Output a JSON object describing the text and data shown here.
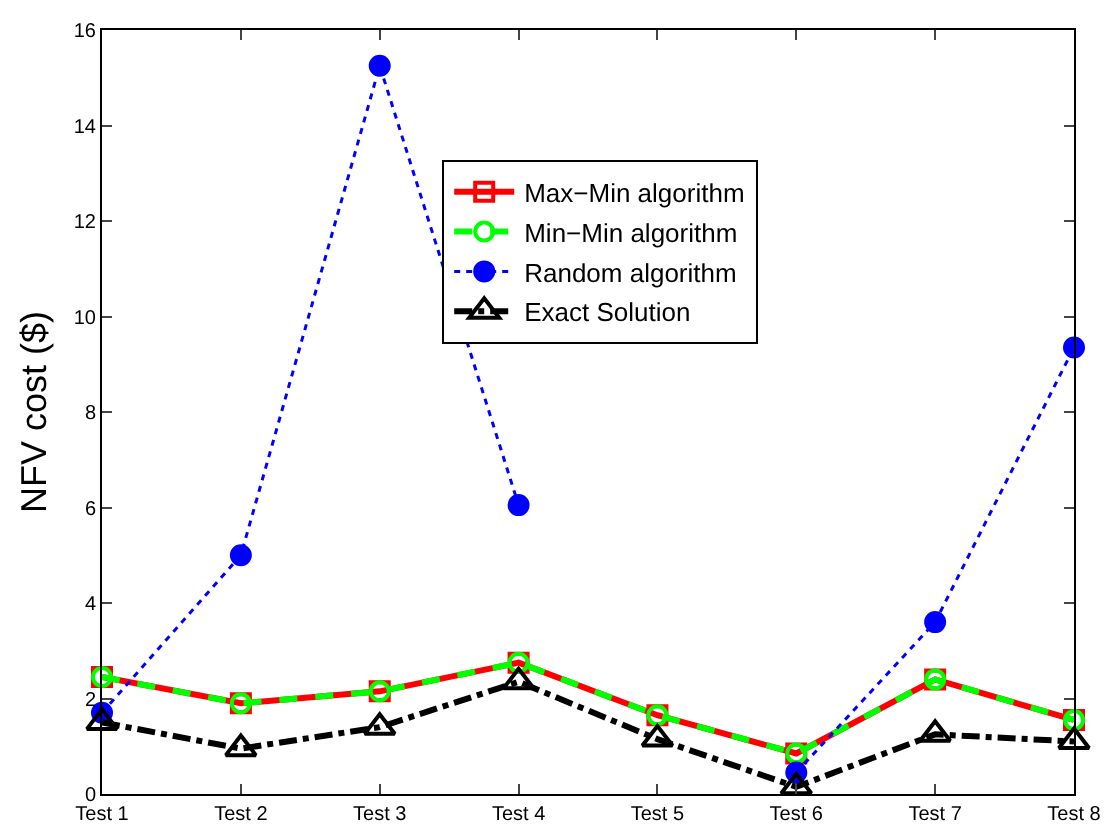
{
  "chart_data": {
    "type": "line",
    "ylabel": "NFV cost ($)",
    "categories": [
      "Test 1",
      "Test 2",
      "Test 3",
      "Test 4",
      "Test 5",
      "Test 6",
      "Test 7",
      "Test 8"
    ],
    "series": [
      {
        "name": "Max−Min algorithm",
        "color": "#ff0000",
        "marker": "square",
        "line_style": "solid",
        "values": [
          2.45,
          1.9,
          2.15,
          2.75,
          1.65,
          0.85,
          2.4,
          1.55
        ]
      },
      {
        "name": "Min−Min algorithm",
        "color": "#00ff00",
        "marker": "circle",
        "line_style": "dashed",
        "values": [
          2.45,
          1.9,
          2.15,
          2.75,
          1.65,
          0.85,
          2.4,
          1.55
        ]
      },
      {
        "name": "Random algorithm",
        "color": "#0000ff",
        "marker": "circle",
        "line_style": "dotted",
        "values": [
          1.7,
          5.0,
          15.25,
          6.05,
          null,
          0.45,
          3.6,
          9.35
        ]
      },
      {
        "name": "Exact Solution",
        "color": "#000000",
        "marker": "triangle",
        "line_style": "dashdot",
        "values": [
          1.5,
          0.95,
          1.4,
          2.35,
          1.15,
          0.15,
          1.25,
          1.1
        ]
      }
    ],
    "ylim": [
      0,
      16
    ],
    "yticks": [
      0,
      2,
      4,
      6,
      8,
      10,
      12,
      14,
      16
    ],
    "grid": false,
    "legend": "top"
  }
}
